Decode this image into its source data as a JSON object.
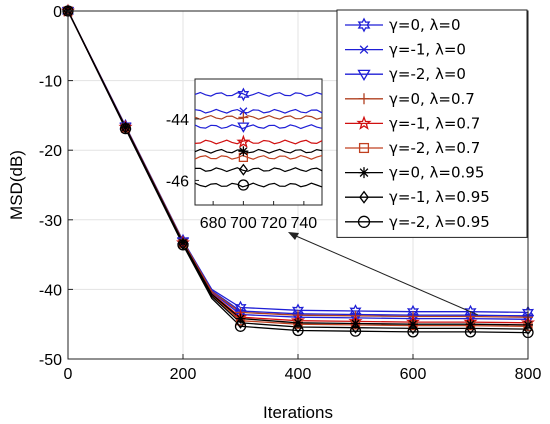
{
  "chart_data": {
    "type": "line",
    "title": "",
    "xlabel": "Iterations",
    "ylabel": "MSD(dB)",
    "xlim": [
      0,
      800
    ],
    "ylim": [
      -50,
      0
    ],
    "xticks": [
      0,
      200,
      400,
      600,
      800
    ],
    "yticks": [
      0,
      -10,
      -20,
      -30,
      -40,
      -50
    ],
    "grid": true,
    "legend_placement": "top-right",
    "x": [
      0,
      100,
      200,
      250,
      300,
      400,
      500,
      600,
      700,
      800
    ],
    "series": [
      {
        "name": "γ=0,  λ=0",
        "color": "#1f1fd6",
        "marker": "hexagram",
        "values": [
          0,
          -16.5,
          -33.0,
          -40.0,
          -42.6,
          -43.0,
          -43.1,
          -43.2,
          -43.2,
          -43.3
        ]
      },
      {
        "name": "γ=-1,  λ=0",
        "color": "#1f1fd6",
        "marker": "x",
        "values": [
          0,
          -16.6,
          -33.1,
          -40.2,
          -43.1,
          -43.5,
          -43.6,
          -43.7,
          -43.7,
          -43.8
        ]
      },
      {
        "name": "γ=-2,  λ=0",
        "color": "#1f1fd6",
        "marker": "triangle-down",
        "values": [
          0,
          -16.7,
          -33.2,
          -40.4,
          -43.6,
          -44.0,
          -44.1,
          -44.2,
          -44.2,
          -44.3
        ]
      },
      {
        "name": "γ=0,  λ=0.7",
        "color": "#b04020",
        "marker": "plus",
        "values": [
          0,
          -16.6,
          -33.1,
          -40.3,
          -43.3,
          -43.7,
          -43.8,
          -43.9,
          -43.9,
          -44.0
        ]
      },
      {
        "name": "γ=-1,  λ=0.7",
        "color": "#d01010",
        "marker": "pentagram",
        "values": [
          0,
          -16.7,
          -33.3,
          -40.6,
          -44.0,
          -44.5,
          -44.6,
          -44.7,
          -44.7,
          -44.8
        ]
      },
      {
        "name": "γ=-2,  λ=0.7",
        "color": "#c04020",
        "marker": "square",
        "values": [
          0,
          -16.8,
          -33.4,
          -40.8,
          -44.5,
          -45.0,
          -45.1,
          -45.2,
          -45.2,
          -45.3
        ]
      },
      {
        "name": "γ=0,  λ=0.95",
        "color": "#000000",
        "marker": "asterisk",
        "values": [
          0,
          -16.7,
          -33.3,
          -40.7,
          -44.2,
          -44.8,
          -44.9,
          -45.0,
          -45.0,
          -45.1
        ]
      },
      {
        "name": "γ=-1,  λ=0.95",
        "color": "#000000",
        "marker": "diamond",
        "values": [
          0,
          -16.8,
          -33.5,
          -41.0,
          -44.8,
          -45.4,
          -45.5,
          -45.6,
          -45.6,
          -45.7
        ]
      },
      {
        "name": "γ=-2,  λ=0.95",
        "color": "#000000",
        "marker": "circle",
        "values": [
          0,
          -16.9,
          -33.6,
          -41.3,
          -45.3,
          -45.9,
          -46.0,
          -46.1,
          -46.1,
          -46.2
        ]
      }
    ],
    "inset": {
      "xlim": [
        668,
        752
      ],
      "ylim": [
        -46.8,
        -42.7
      ],
      "xticks": [
        680,
        700,
        720,
        740
      ],
      "yticks": [
        -44,
        -46
      ],
      "marker_x": 700,
      "values": [
        -43.2,
        -43.75,
        -44.25,
        -43.95,
        -44.75,
        -45.25,
        -45.05,
        -45.65,
        -46.15
      ]
    }
  }
}
